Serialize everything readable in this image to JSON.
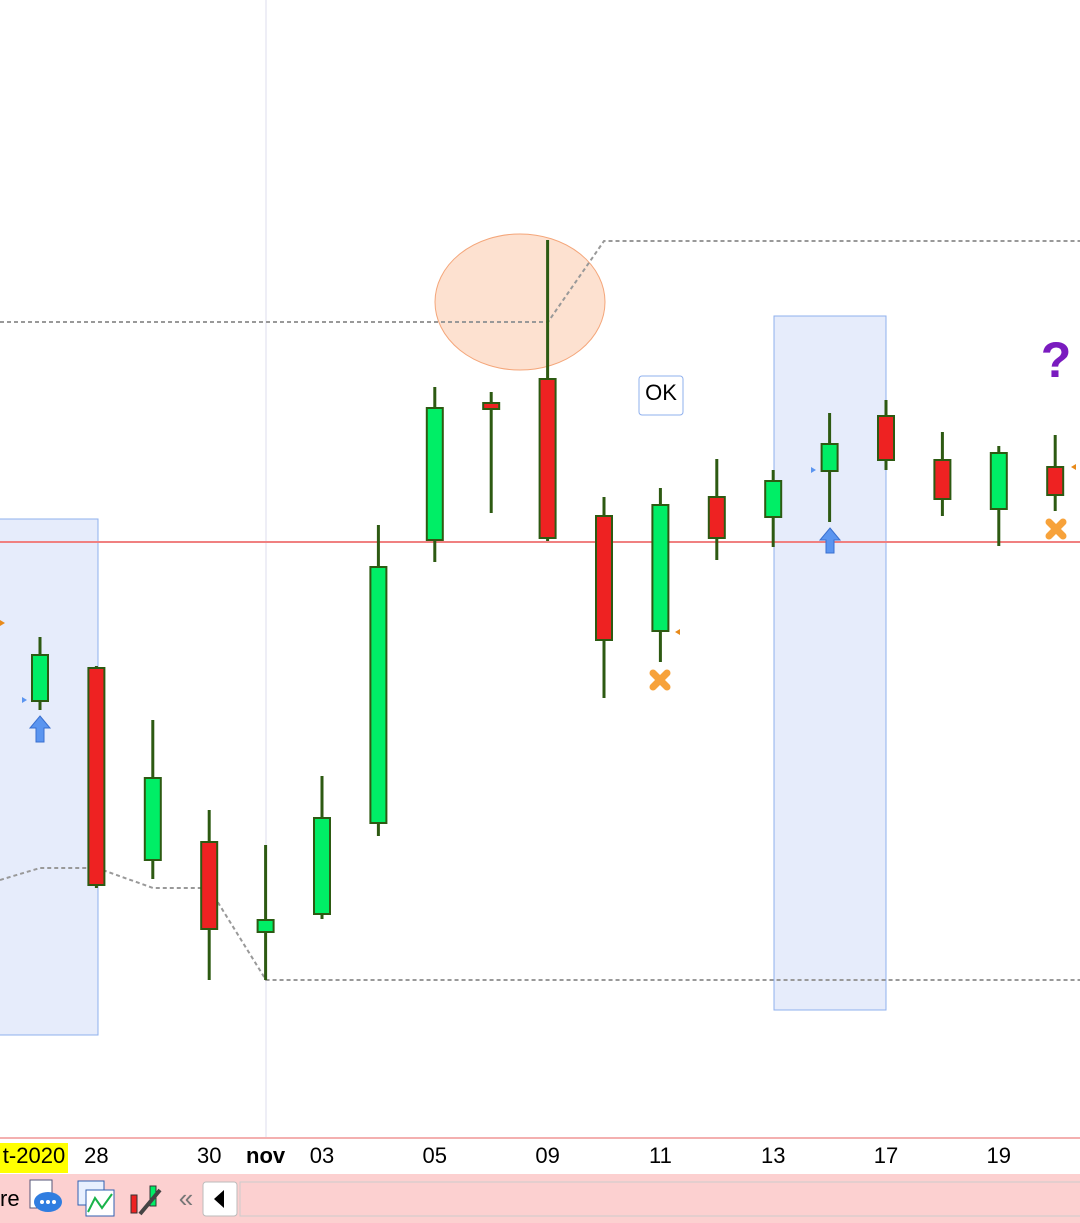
{
  "chart_data": {
    "type": "candlestick",
    "categories": [
      "t-2020",
      "28",
      null,
      "30",
      "nov",
      "03",
      null,
      "05",
      null,
      "09",
      null,
      "11",
      null,
      "13",
      null,
      "17",
      null,
      "19",
      null
    ],
    "open": [
      439,
      472,
      280,
      298,
      208,
      226,
      317,
      600,
      737,
      761,
      624,
      509,
      643,
      623,
      669,
      724,
      680,
      631,
      673
    ],
    "close": [
      485,
      255,
      362,
      211,
      220,
      322,
      573,
      732,
      731,
      602,
      500,
      635,
      602,
      659,
      696,
      680,
      641,
      687,
      645
    ],
    "high": [
      503,
      474,
      420,
      330,
      295,
      364,
      615,
      753,
      748,
      900,
      643,
      652,
      681,
      670,
      727,
      740,
      708,
      694,
      705
    ],
    "low": [
      430,
      252,
      261,
      160,
      160,
      221,
      304,
      578,
      627,
      599,
      442,
      478,
      580,
      593,
      618,
      670,
      624,
      594,
      629
    ],
    "up_color": "#00ee66",
    "down_color": "#ee2222",
    "ylim": [
      0,
      1140
    ],
    "annotations": {
      "ok": "OK",
      "question": "?"
    },
    "toolbar": {
      "left_text": "re",
      "collapse": "«"
    }
  }
}
